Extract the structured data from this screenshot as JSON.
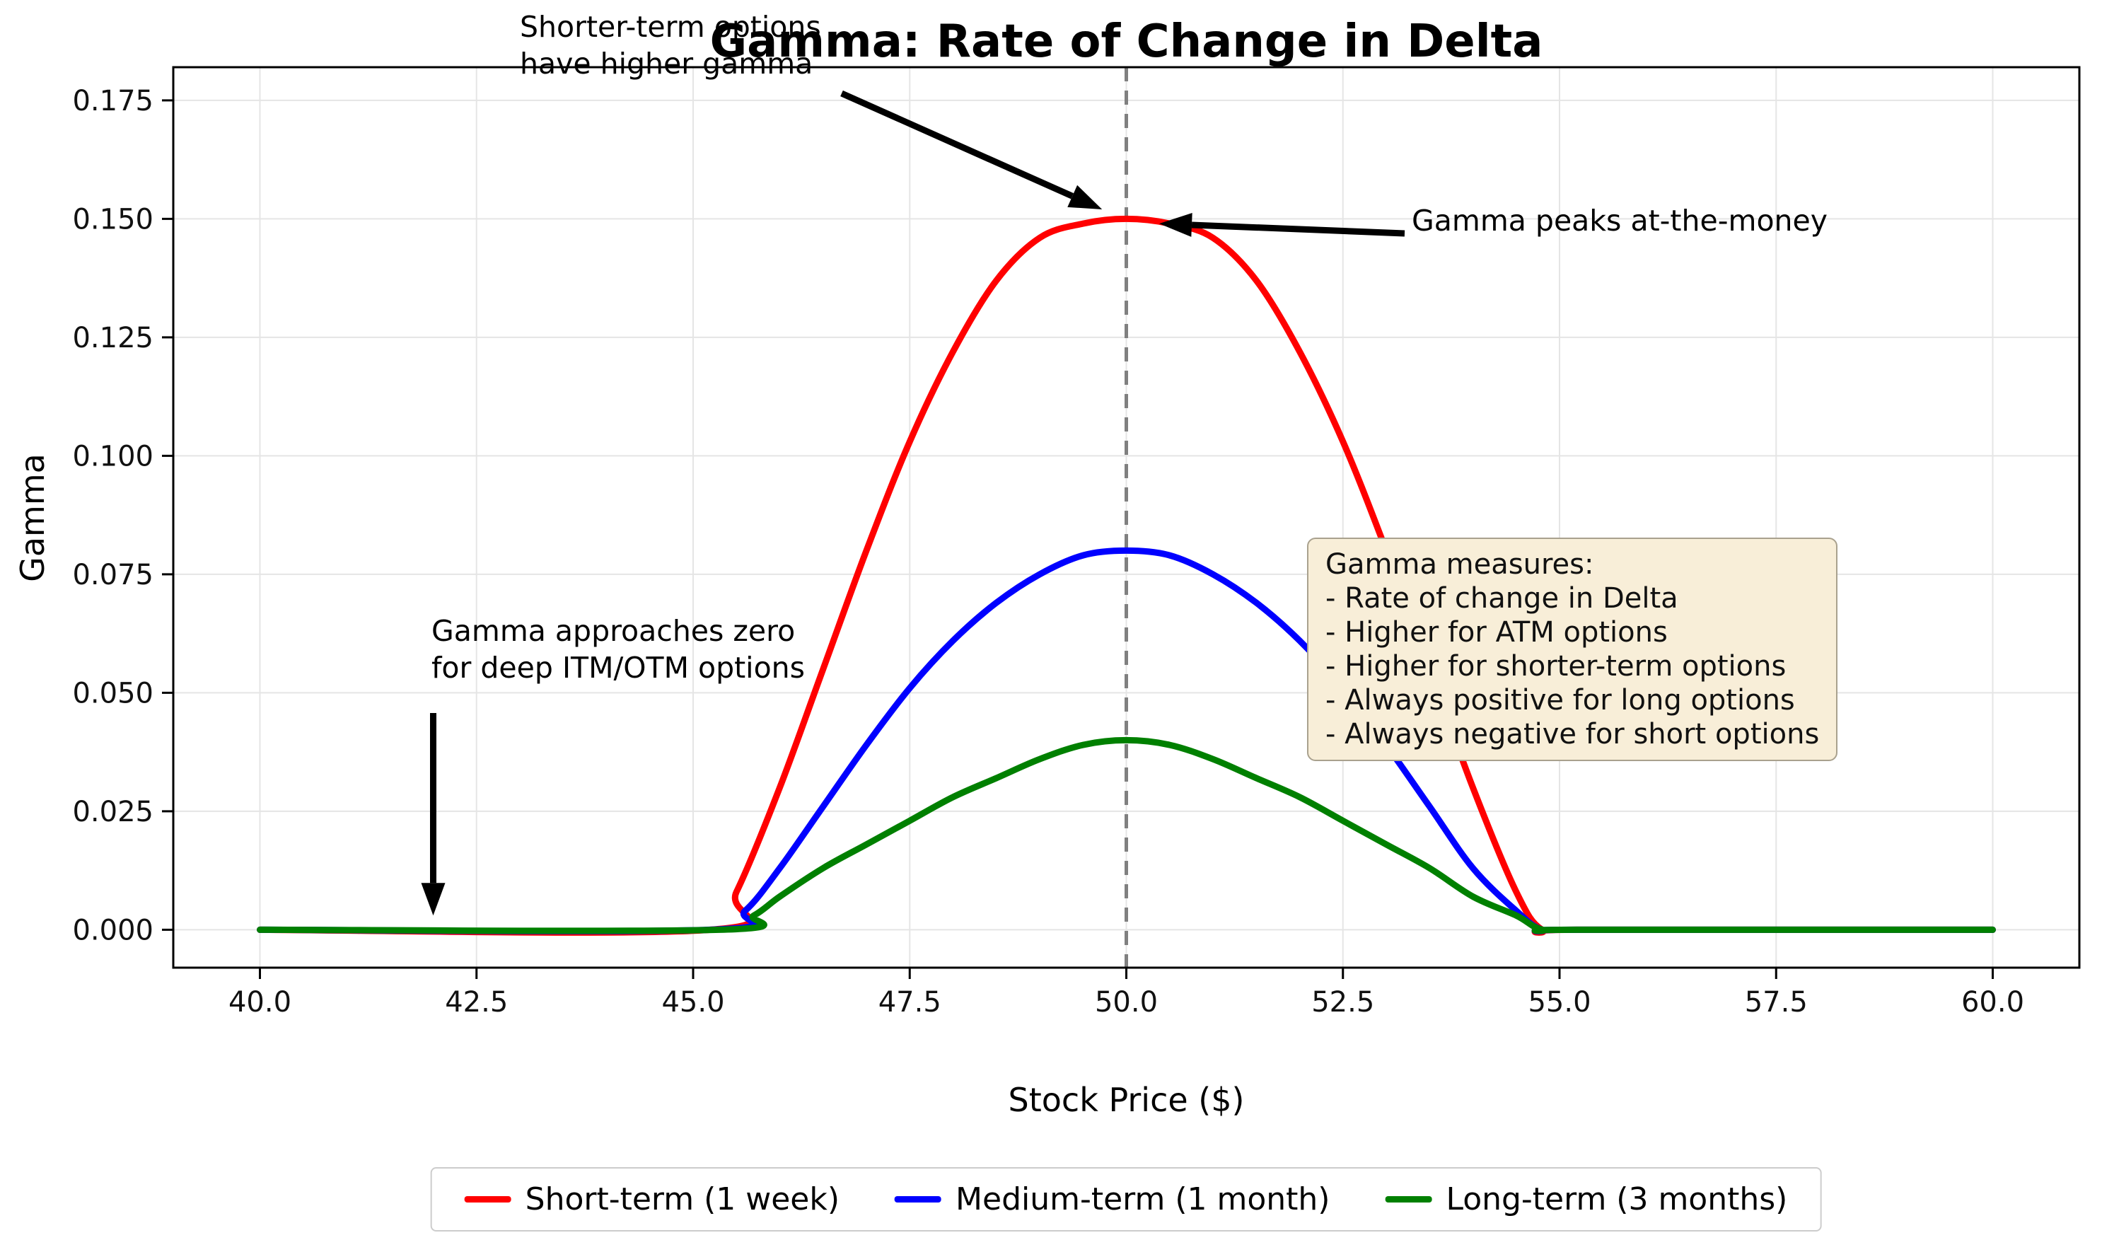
{
  "page": {
    "background": "#ffffff"
  },
  "chart_data": {
    "type": "line",
    "title": "Gamma: Rate of Change in Delta",
    "xlabel": "Stock Price ($)",
    "ylabel": "Gamma",
    "xlim": [
      39,
      61
    ],
    "ylim": [
      -0.008,
      0.182
    ],
    "x_ticks": [
      "40.0",
      "42.5",
      "45.0",
      "47.5",
      "50.0",
      "52.5",
      "55.0",
      "57.5",
      "60.0"
    ],
    "y_ticks": [
      "0.000",
      "0.025",
      "0.050",
      "0.075",
      "0.100",
      "0.125",
      "0.150",
      "0.175"
    ],
    "grid": true,
    "strike_line": {
      "x": 50,
      "style": "dashed",
      "color": "#808080"
    },
    "series": [
      {
        "name": "Short-term (1 week)",
        "color": "#ff0000",
        "peak": 0.15,
        "points": [
          [
            40,
            0
          ],
          [
            45.2,
            0
          ],
          [
            45.5,
            0.008
          ],
          [
            46,
            0.03
          ],
          [
            46.5,
            0.055
          ],
          [
            47,
            0.08
          ],
          [
            47.5,
            0.103
          ],
          [
            48,
            0.122
          ],
          [
            48.5,
            0.137
          ],
          [
            49,
            0.146
          ],
          [
            49.5,
            0.149
          ],
          [
            50,
            0.15
          ],
          [
            50.5,
            0.149
          ],
          [
            51,
            0.146
          ],
          [
            51.5,
            0.137
          ],
          [
            52,
            0.122
          ],
          [
            52.5,
            0.103
          ],
          [
            53,
            0.08
          ],
          [
            53.5,
            0.055
          ],
          [
            54,
            0.03
          ],
          [
            54.5,
            0.008
          ],
          [
            54.8,
            0
          ],
          [
            55.2,
            0
          ],
          [
            60,
            0
          ]
        ]
      },
      {
        "name": "Medium-term (1 month)",
        "color": "#0000ff",
        "peak": 0.08,
        "points": [
          [
            40,
            0
          ],
          [
            45.2,
            0
          ],
          [
            45.6,
            0.004
          ],
          [
            46,
            0.013
          ],
          [
            46.5,
            0.026
          ],
          [
            47,
            0.039
          ],
          [
            47.5,
            0.051
          ],
          [
            48,
            0.061
          ],
          [
            48.5,
            0.069
          ],
          [
            49,
            0.075
          ],
          [
            49.5,
            0.079
          ],
          [
            50,
            0.08
          ],
          [
            50.5,
            0.079
          ],
          [
            51,
            0.075
          ],
          [
            51.5,
            0.069
          ],
          [
            52,
            0.061
          ],
          [
            52.5,
            0.051
          ],
          [
            53,
            0.039
          ],
          [
            53.5,
            0.026
          ],
          [
            54,
            0.013
          ],
          [
            54.5,
            0.004
          ],
          [
            54.8,
            0
          ],
          [
            55.2,
            0
          ],
          [
            60,
            0
          ]
        ]
      },
      {
        "name": "Long-term (3 months)",
        "color": "#008000",
        "peak": 0.04,
        "points": [
          [
            40,
            0
          ],
          [
            45.3,
            0
          ],
          [
            45.7,
            0.003
          ],
          [
            46,
            0.007
          ],
          [
            46.5,
            0.013
          ],
          [
            47,
            0.018
          ],
          [
            47.5,
            0.023
          ],
          [
            48,
            0.028
          ],
          [
            48.5,
            0.032
          ],
          [
            49,
            0.036
          ],
          [
            49.5,
            0.039
          ],
          [
            50,
            0.04
          ],
          [
            50.5,
            0.039
          ],
          [
            51,
            0.036
          ],
          [
            51.5,
            0.032
          ],
          [
            52,
            0.028
          ],
          [
            52.5,
            0.023
          ],
          [
            53,
            0.018
          ],
          [
            53.5,
            0.013
          ],
          [
            54,
            0.007
          ],
          [
            54.5,
            0.003
          ],
          [
            54.8,
            0
          ],
          [
            55.2,
            0
          ],
          [
            60,
            0
          ]
        ]
      }
    ],
    "legend": {
      "position": "bottom",
      "entries": [
        "Short-term (1 week)",
        "Medium-term (1 month)",
        "Long-term (3 months)"
      ]
    },
    "annotations": [
      {
        "id": "shorter-term-higher-gamma",
        "text": "Shorter-term options\nhave higher gamma"
      },
      {
        "id": "gamma-peaks-atm",
        "text": "Gamma peaks at-the-money"
      },
      {
        "id": "gamma-approaches-zero",
        "text": "Gamma approaches zero\nfor deep ITM/OTM options"
      },
      {
        "id": "gamma-measures-box",
        "text": "Gamma measures:\n- Rate of change in Delta\n- Higher for ATM options\n- Higher for shorter-term options\n- Always positive for long options\n- Always negative for short options"
      }
    ]
  }
}
